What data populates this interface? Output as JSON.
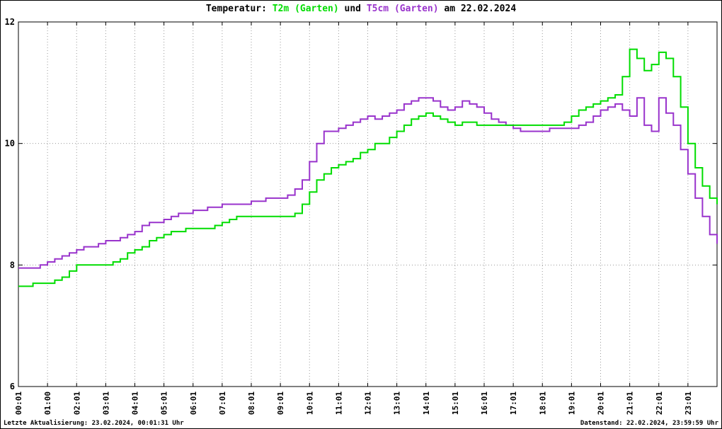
{
  "title": {
    "segments": [
      {
        "text": "Temperatur: ",
        "color": "#000000"
      },
      {
        "text": "T2m (Garten)",
        "color": "#00dd00"
      },
      {
        "text": " und ",
        "color": "#000000"
      },
      {
        "text": "T5cm (Garten)",
        "color": "#9933cc"
      },
      {
        "text": " am 22.02.2024",
        "color": "#000000"
      }
    ]
  },
  "footer": {
    "left": "Letzte Aktualisierung: 23.02.2024, 00:01:31 Uhr",
    "right": "Datenstand: 22.02.2024, 23:59:59 Uhr"
  },
  "chart_data": {
    "type": "line",
    "line_style": "steps",
    "title": "Temperatur: T2m (Garten) und T5cm (Garten) am 22.02.2024",
    "xlabel": "",
    "ylabel": "",
    "xlim": [
      0,
      24
    ],
    "ylim": [
      6,
      12
    ],
    "grid": true,
    "legend_position": "in-title-colored",
    "x_tick_hours": [
      0,
      1,
      2,
      3,
      4,
      5,
      6,
      7,
      8,
      9,
      10,
      11,
      12,
      13,
      14,
      15,
      16,
      17,
      18,
      19,
      20,
      21,
      22,
      23
    ],
    "x_tick_labels": [
      "00:01",
      "01:00",
      "02:01",
      "03:01",
      "04:01",
      "05:01",
      "06:01",
      "07:01",
      "08:01",
      "09:01",
      "10:01",
      "11:01",
      "12:01",
      "13:01",
      "14:01",
      "15:01",
      "16:01",
      "17:01",
      "18:01",
      "19:01",
      "20:01",
      "21:01",
      "22:01",
      "23:01"
    ],
    "y_ticks": [
      6,
      8,
      10,
      12
    ],
    "x_hours": [
      0,
      0.25,
      0.5,
      0.75,
      1,
      1.25,
      1.5,
      1.75,
      2,
      2.25,
      2.5,
      2.75,
      3,
      3.25,
      3.5,
      3.75,
      4,
      4.25,
      4.5,
      4.75,
      5,
      5.25,
      5.5,
      5.75,
      6,
      6.25,
      6.5,
      6.75,
      7,
      7.25,
      7.5,
      7.75,
      8,
      8.25,
      8.5,
      8.75,
      9,
      9.25,
      9.5,
      9.75,
      10,
      10.25,
      10.5,
      10.75,
      11,
      11.25,
      11.5,
      11.75,
      12,
      12.25,
      12.5,
      12.75,
      13,
      13.25,
      13.5,
      13.75,
      14,
      14.25,
      14.5,
      14.75,
      15,
      15.25,
      15.5,
      15.75,
      16,
      16.25,
      16.5,
      16.75,
      17,
      17.25,
      17.5,
      17.75,
      18,
      18.25,
      18.5,
      18.75,
      19,
      19.25,
      19.5,
      19.75,
      20,
      20.25,
      20.5,
      20.75,
      21,
      21.25,
      21.5,
      21.75,
      22,
      22.25,
      22.5,
      22.75,
      23,
      23.25,
      23.5,
      23.75,
      24
    ],
    "series": [
      {
        "name": "T5cm (Garten)",
        "color": "#9933cc",
        "values": [
          7.95,
          7.95,
          7.95,
          8.0,
          8.05,
          8.1,
          8.15,
          8.2,
          8.25,
          8.3,
          8.3,
          8.35,
          8.4,
          8.4,
          8.45,
          8.5,
          8.55,
          8.65,
          8.7,
          8.7,
          8.75,
          8.8,
          8.85,
          8.85,
          8.9,
          8.9,
          8.95,
          8.95,
          9.0,
          9.0,
          9.0,
          9.0,
          9.05,
          9.05,
          9.1,
          9.1,
          9.1,
          9.15,
          9.25,
          9.4,
          9.7,
          10.0,
          10.2,
          10.2,
          10.25,
          10.3,
          10.35,
          10.4,
          10.45,
          10.4,
          10.45,
          10.5,
          10.55,
          10.65,
          10.7,
          10.75,
          10.75,
          10.7,
          10.6,
          10.55,
          10.6,
          10.7,
          10.65,
          10.6,
          10.5,
          10.4,
          10.35,
          10.3,
          10.25,
          10.2,
          10.2,
          10.2,
          10.2,
          10.25,
          10.25,
          10.25,
          10.25,
          10.3,
          10.35,
          10.45,
          10.55,
          10.6,
          10.65,
          10.55,
          10.45,
          10.75,
          10.3,
          10.2,
          10.75,
          10.5,
          10.3,
          9.9,
          9.5,
          9.1,
          8.8,
          8.5,
          8.35
        ]
      },
      {
        "name": "T2m (Garten)",
        "color": "#00dd00",
        "values": [
          7.65,
          7.65,
          7.7,
          7.7,
          7.7,
          7.75,
          7.8,
          7.9,
          8.0,
          8.0,
          8.0,
          8.0,
          8.0,
          8.05,
          8.1,
          8.2,
          8.25,
          8.3,
          8.4,
          8.45,
          8.5,
          8.55,
          8.55,
          8.6,
          8.6,
          8.6,
          8.6,
          8.65,
          8.7,
          8.75,
          8.8,
          8.8,
          8.8,
          8.8,
          8.8,
          8.8,
          8.8,
          8.8,
          8.85,
          9.0,
          9.2,
          9.4,
          9.5,
          9.6,
          9.65,
          9.7,
          9.75,
          9.85,
          9.9,
          10.0,
          10.0,
          10.1,
          10.2,
          10.3,
          10.4,
          10.45,
          10.5,
          10.45,
          10.4,
          10.35,
          10.3,
          10.35,
          10.35,
          10.3,
          10.3,
          10.3,
          10.3,
          10.3,
          10.3,
          10.3,
          10.3,
          10.3,
          10.3,
          10.3,
          10.3,
          10.35,
          10.45,
          10.55,
          10.6,
          10.65,
          10.7,
          10.75,
          10.8,
          11.1,
          11.55,
          11.4,
          11.2,
          11.3,
          11.5,
          11.4,
          11.1,
          10.6,
          10.0,
          9.6,
          9.3,
          9.1,
          9.0
        ]
      }
    ],
    "colors": {
      "grid": "#9a9a9a",
      "border": "#000000",
      "background": "#ffffff"
    }
  }
}
